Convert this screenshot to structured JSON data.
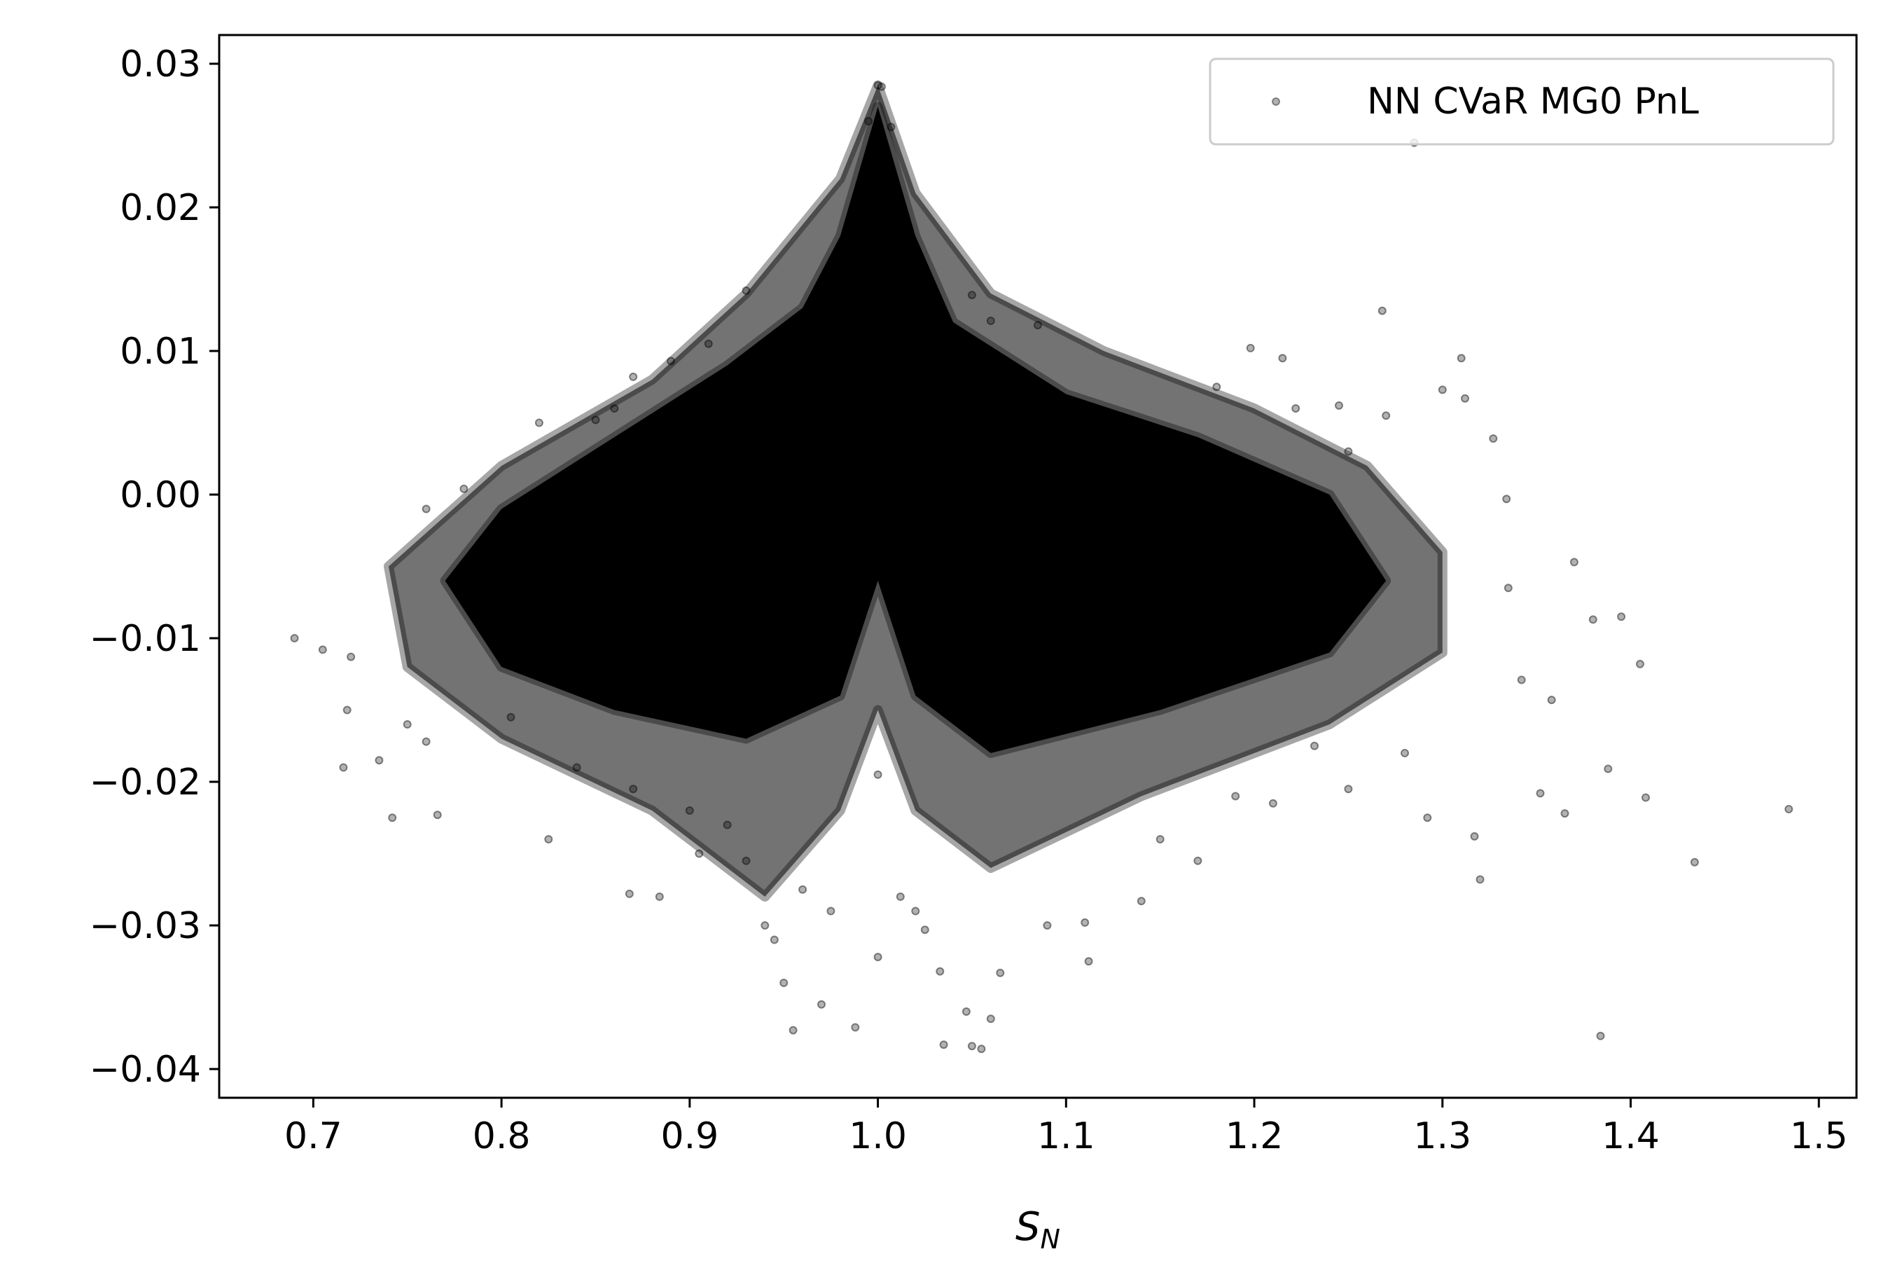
{
  "chart_data": {
    "type": "scatter",
    "title": "",
    "xlabel": "S",
    "xlabel_sub": "N",
    "ylabel": "",
    "xlim": [
      0.65,
      1.52
    ],
    "ylim": [
      -0.042,
      0.032
    ],
    "x_ticks": [
      0.7,
      0.8,
      0.9,
      1.0,
      1.1,
      1.2,
      1.3,
      1.4,
      1.5
    ],
    "x_tick_labels": [
      "0.7",
      "0.8",
      "0.9",
      "1.0",
      "1.1",
      "1.2",
      "1.3",
      "1.4",
      "1.5"
    ],
    "y_ticks": [
      0.03,
      0.02,
      0.01,
      0.0,
      -0.01,
      -0.02,
      -0.03,
      -0.04
    ],
    "y_tick_labels": [
      "0.03",
      "0.02",
      "0.01",
      "0.00",
      "−0.01",
      "−0.02",
      "−0.03",
      "−0.04"
    ],
    "grid": false,
    "legend_position": "top-right",
    "series": [
      {
        "name": "NN CVaR MG0 PnL",
        "color": "#000000",
        "marker": "circle",
        "alpha": 0.3,
        "points": [
          [
            0.69,
            -0.01
          ],
          [
            0.705,
            -0.0108
          ],
          [
            0.716,
            -0.019
          ],
          [
            0.718,
            -0.015
          ],
          [
            0.735,
            -0.0185
          ],
          [
            0.742,
            -0.0225
          ],
          [
            0.766,
            -0.0223
          ],
          [
            0.72,
            -0.0113
          ],
          [
            0.75,
            -0.016
          ],
          [
            0.76,
            -0.0172
          ],
          [
            0.76,
            -0.001
          ],
          [
            0.78,
            0.0004
          ],
          [
            0.795,
            -0.0025
          ],
          [
            0.805,
            -0.0155
          ],
          [
            0.82,
            0.005
          ],
          [
            0.825,
            -0.024
          ],
          [
            0.84,
            0.002
          ],
          [
            0.85,
            0.0052
          ],
          [
            0.86,
            0.006
          ],
          [
            0.87,
            0.0082
          ],
          [
            0.868,
            -0.0278
          ],
          [
            0.884,
            -0.028
          ],
          [
            0.89,
            0.0093
          ],
          [
            0.91,
            0.0105
          ],
          [
            0.905,
            -0.025
          ],
          [
            0.92,
            -0.023
          ],
          [
            0.93,
            0.0142
          ],
          [
            0.94,
            -0.03
          ],
          [
            0.945,
            -0.031
          ],
          [
            0.95,
            -0.034
          ],
          [
            0.955,
            -0.0373
          ],
          [
            0.97,
            -0.0355
          ],
          [
            0.988,
            -0.0371
          ],
          [
            0.995,
            0.026
          ],
          [
            1.0,
            0.0285
          ],
          [
            1.002,
            0.0284
          ],
          [
            1.007,
            0.0256
          ],
          [
            1.0,
            -0.0322
          ],
          [
            1.012,
            -0.028
          ],
          [
            1.02,
            -0.029
          ],
          [
            1.025,
            -0.0303
          ],
          [
            1.033,
            -0.0332
          ],
          [
            1.035,
            -0.0383
          ],
          [
            1.047,
            -0.036
          ],
          [
            1.05,
            -0.0384
          ],
          [
            1.055,
            -0.0386
          ],
          [
            1.06,
            -0.0365
          ],
          [
            1.065,
            -0.0333
          ],
          [
            1.05,
            0.0139
          ],
          [
            1.06,
            0.0121
          ],
          [
            1.085,
            0.0118
          ],
          [
            1.09,
            -0.03
          ],
          [
            1.11,
            -0.0298
          ],
          [
            1.112,
            -0.0325
          ],
          [
            1.14,
            -0.0283
          ],
          [
            1.15,
            -0.024
          ],
          [
            1.17,
            -0.0255
          ],
          [
            1.18,
            0.0075
          ],
          [
            1.198,
            0.0102
          ],
          [
            1.215,
            0.0095
          ],
          [
            1.222,
            0.006
          ],
          [
            1.245,
            0.0062
          ],
          [
            1.25,
            0.003
          ],
          [
            1.268,
            0.0128
          ],
          [
            1.27,
            0.0055
          ],
          [
            1.3,
            0.0073
          ],
          [
            1.31,
            0.0095
          ],
          [
            1.312,
            0.0067
          ],
          [
            1.317,
            -0.0238
          ],
          [
            1.32,
            -0.0268
          ],
          [
            1.327,
            0.0039
          ],
          [
            1.334,
            -0.0003
          ],
          [
            1.352,
            -0.0208
          ],
          [
            1.365,
            -0.0222
          ],
          [
            1.37,
            -0.0047
          ],
          [
            1.38,
            -0.0087
          ],
          [
            1.384,
            -0.0377
          ],
          [
            1.388,
            -0.0191
          ],
          [
            1.395,
            -0.0085
          ],
          [
            1.405,
            -0.0118
          ],
          [
            1.408,
            -0.0211
          ],
          [
            1.434,
            -0.0256
          ],
          [
            1.484,
            -0.0219
          ],
          [
            1.285,
            0.0245
          ],
          [
            1.292,
            -0.0225
          ],
          [
            1.342,
            -0.0129
          ],
          [
            1.358,
            -0.0143
          ],
          [
            1.335,
            -0.0065
          ],
          [
            1.28,
            -0.018
          ],
          [
            1.25,
            -0.0205
          ],
          [
            1.232,
            -0.0175
          ],
          [
            1.21,
            -0.0215
          ],
          [
            1.19,
            -0.021
          ],
          [
            1.0,
            -0.0195
          ],
          [
            0.975,
            -0.029
          ],
          [
            0.96,
            -0.0275
          ],
          [
            0.93,
            -0.0255
          ],
          [
            0.9,
            -0.022
          ],
          [
            0.87,
            -0.0205
          ],
          [
            0.84,
            -0.019
          ]
        ],
        "density_regions": [
          {
            "polygon": [
              [
                0.98,
                0.018
              ],
              [
                1.0,
                0.027
              ],
              [
                1.02,
                0.018
              ],
              [
                1.04,
                0.012
              ],
              [
                1.1,
                0.007
              ],
              [
                1.17,
                0.004
              ],
              [
                1.24,
                0.0
              ],
              [
                1.27,
                -0.006
              ],
              [
                1.24,
                -0.011
              ],
              [
                1.15,
                -0.015
              ],
              [
                1.06,
                -0.018
              ],
              [
                1.02,
                -0.014
              ],
              [
                1.005,
                -0.008
              ],
              [
                1.0,
                -0.006
              ],
              [
                0.995,
                -0.008
              ],
              [
                0.98,
                -0.014
              ],
              [
                0.93,
                -0.017
              ],
              [
                0.86,
                -0.015
              ],
              [
                0.8,
                -0.012
              ],
              [
                0.77,
                -0.006
              ],
              [
                0.8,
                -0.001
              ],
              [
                0.86,
                0.004
              ],
              [
                0.92,
                0.009
              ],
              [
                0.96,
                0.013
              ]
            ]
          },
          {
            "polygon": [
              [
                0.74,
                -0.005
              ],
              [
                0.8,
                0.002
              ],
              [
                0.88,
                0.008
              ],
              [
                0.93,
                0.014
              ],
              [
                0.98,
                0.022
              ],
              [
                1.0,
                0.0285
              ],
              [
                1.02,
                0.021
              ],
              [
                1.06,
                0.014
              ],
              [
                1.12,
                0.01
              ],
              [
                1.2,
                0.006
              ],
              [
                1.26,
                0.002
              ],
              [
                1.3,
                -0.004
              ],
              [
                1.3,
                -0.011
              ],
              [
                1.24,
                -0.016
              ],
              [
                1.14,
                -0.021
              ],
              [
                1.06,
                -0.026
              ],
              [
                1.02,
                -0.022
              ],
              [
                1.0,
                -0.015
              ],
              [
                0.98,
                -0.022
              ],
              [
                0.94,
                -0.028
              ],
              [
                0.88,
                -0.022
              ],
              [
                0.8,
                -0.017
              ],
              [
                0.75,
                -0.012
              ]
            ]
          }
        ]
      }
    ]
  }
}
